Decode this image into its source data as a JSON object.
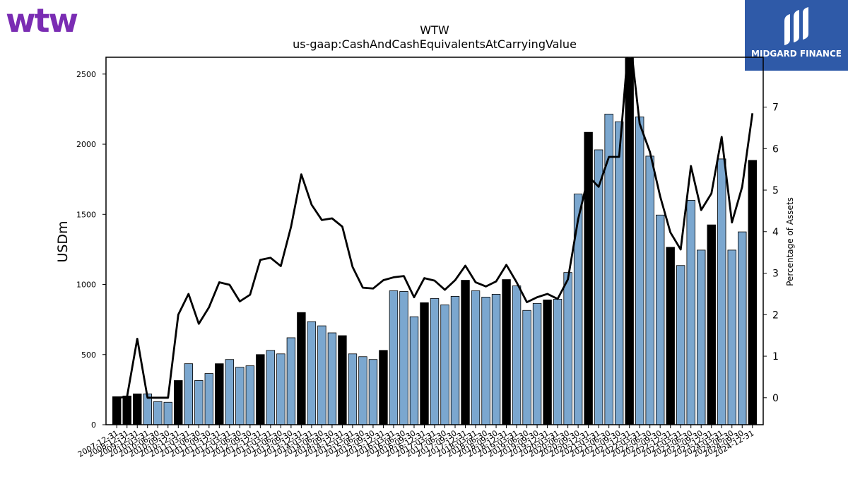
{
  "logos": {
    "company": "wtw",
    "sponsor": "MIDGARD FINANCE"
  },
  "colors": {
    "bar_light": "#7ba7cf",
    "bar_dark": "#000000",
    "line": "#000000",
    "brand_purple": "#7a2cb3",
    "brand_blue": "#2f5aa8"
  },
  "chart_data": {
    "type": "bar+line",
    "title": "WTW",
    "subtitle": "us-gaap:CashAndCashEquivalentsAtCarryingValue",
    "ylabel": "USDm",
    "y2label": "Percentage of Assets",
    "ylim": [
      0,
      2620
    ],
    "y2lim": [
      -0.65,
      8.2
    ],
    "yticks": [
      0,
      500,
      1000,
      1500,
      2000,
      2500
    ],
    "y2ticks": [
      0,
      1,
      2,
      3,
      4,
      5,
      6,
      7
    ],
    "categories": [
      "2007-12-31",
      "2008-12-31",
      "2009-12-31",
      "2010-03-31",
      "2010-06-30",
      "2010-09-30",
      "2010-12-31",
      "2011-03-31",
      "2011-06-30",
      "2011-09-30",
      "2011-12-31",
      "2012-03-31",
      "2012-06-30",
      "2012-09-30",
      "2012-12-31",
      "2013-03-31",
      "2013-06-30",
      "2013-09-30",
      "2013-12-31",
      "2014-03-31",
      "2014-06-30",
      "2014-09-30",
      "2014-12-31",
      "2015-03-31",
      "2015-06-30",
      "2015-09-30",
      "2015-12-31",
      "2016-03-31",
      "2016-06-30",
      "2016-09-30",
      "2016-12-31",
      "2017-03-31",
      "2017-06-30",
      "2017-09-30",
      "2017-12-31",
      "2018-03-31",
      "2018-06-30",
      "2018-09-30",
      "2018-12-31",
      "2019-03-31",
      "2019-06-30",
      "2019-09-30",
      "2019-12-31",
      "2020-03-31",
      "2020-06-30",
      "2020-09-30",
      "2020-12-31",
      "2021-03-31",
      "2021-06-30",
      "2021-09-30",
      "2021-12-31",
      "2022-03-31",
      "2022-06-30",
      "2022-09-30",
      "2022-12-31",
      "2023-03-31",
      "2023-06-30",
      "2023-09-30",
      "2023-12-31",
      "2024-03-31",
      "2024-06-30",
      "2024-09-30",
      "2024-12-31"
    ],
    "series": [
      {
        "kind": "bar",
        "values": [
          200,
          205,
          220,
          220,
          165,
          160,
          315,
          435,
          315,
          365,
          435,
          465,
          410,
          420,
          500,
          530,
          505,
          620,
          800,
          735,
          705,
          655,
          635,
          505,
          485,
          465,
          530,
          955,
          950,
          770,
          870,
          900,
          855,
          915,
          1030,
          955,
          910,
          930,
          1035,
          990,
          815,
          865,
          890,
          895,
          1085,
          1645,
          2085,
          1960,
          2215,
          2160,
          2615,
          2195,
          1915,
          1495,
          1265,
          1135,
          1600,
          1245,
          1425,
          1895,
          1245,
          1375,
          1885
        ],
        "year_end": [
          true,
          true,
          true,
          false,
          false,
          false,
          true,
          false,
          false,
          false,
          true,
          false,
          false,
          false,
          true,
          false,
          false,
          false,
          true,
          false,
          false,
          false,
          true,
          false,
          false,
          false,
          true,
          false,
          false,
          false,
          true,
          false,
          false,
          false,
          true,
          false,
          false,
          false,
          true,
          false,
          false,
          false,
          true,
          false,
          false,
          false,
          true,
          false,
          false,
          false,
          true,
          false,
          false,
          false,
          true,
          false,
          false,
          false,
          true,
          false,
          false,
          false,
          true
        ]
      },
      {
        "kind": "line",
        "axis": "right",
        "values": [
          0.0,
          0.02,
          1.42,
          0.0,
          0.0,
          0.0,
          2.0,
          2.5,
          1.78,
          2.18,
          2.78,
          2.72,
          2.32,
          2.48,
          3.32,
          3.37,
          3.17,
          4.12,
          5.38,
          4.65,
          4.28,
          4.32,
          4.12,
          3.15,
          2.65,
          2.63,
          2.83,
          2.9,
          2.93,
          2.42,
          2.88,
          2.82,
          2.6,
          2.83,
          3.18,
          2.78,
          2.68,
          2.8,
          3.2,
          2.78,
          2.3,
          2.42,
          2.5,
          2.38,
          2.85,
          4.3,
          5.33,
          5.08,
          5.8,
          5.8,
          8.8,
          6.6,
          5.92,
          4.85,
          3.98,
          3.57,
          5.58,
          4.52,
          4.92,
          6.28,
          4.22,
          5.08,
          6.85
        ]
      }
    ],
    "grid": false
  }
}
